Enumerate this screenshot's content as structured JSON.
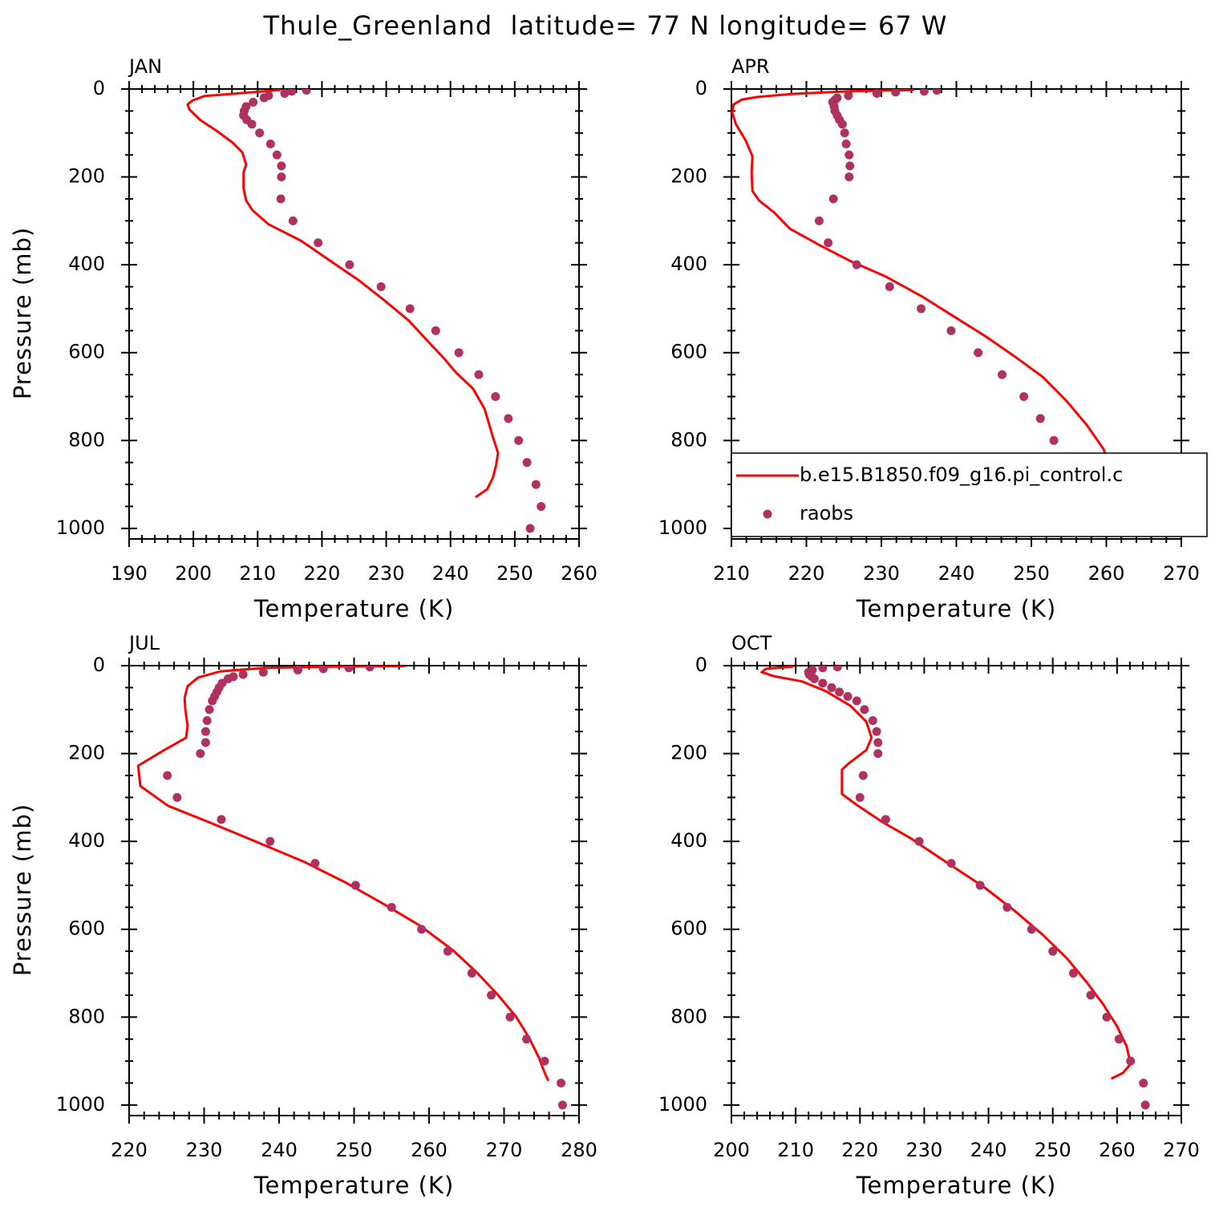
{
  "title": "Thule_Greenland  latitude= 77 N longitude= 67 W",
  "chart_data": [
    {
      "type": "line",
      "title": "JAN",
      "xlabel": "Temperature (K)",
      "ylabel": "Pressure (mb)",
      "xlim": [
        190,
        260
      ],
      "xticks": [
        190,
        200,
        210,
        220,
        230,
        240,
        250,
        260
      ],
      "xminor": 5,
      "ylim": [
        0,
        1024
      ],
      "yticks": [
        0,
        200,
        400,
        600,
        800,
        1000
      ],
      "yminor": 4,
      "y_inverted": true,
      "series": [
        {
          "type": "line",
          "color": "#ff0000",
          "x": [
            243.9,
            245.7,
            246.6,
            247.1,
            247.4,
            246.6,
            245.3,
            243.5,
            240.9,
            238.8,
            236.4,
            233.5,
            229.8,
            225.8,
            221.3,
            216.7,
            211.7,
            209.2,
            208.2,
            207.8,
            207.8,
            208.2,
            207.6,
            206.1,
            203.6,
            201.1,
            199.4,
            199.1,
            199.9,
            201.7,
            206.1,
            211.1,
            213.6
          ],
          "y": [
            929,
            911,
            885,
            856,
            828,
            792,
            728,
            682,
            646,
            610,
            573,
            527,
            482,
            436,
            391,
            345,
            308,
            276,
            254,
            226,
            190,
            172,
            144,
            122,
            95,
            71,
            47,
            35,
            26,
            16,
            11,
            5,
            2
          ]
        },
        {
          "type": "scatter",
          "color": "#b03060",
          "x": [
            252.4,
            254.1,
            253.3,
            251.9,
            250.6,
            249.0,
            247.0,
            244.4,
            241.3,
            237.7,
            233.7,
            229.2,
            224.3,
            219.4,
            215.5,
            213.6,
            213.7,
            213.7,
            213.0,
            212.0,
            210.3,
            209.1,
            208.3,
            207.8,
            207.9,
            208.2,
            209.3,
            211.0,
            211.7,
            214.2,
            215.3,
            217.6
          ],
          "y": [
            1000,
            950,
            900,
            850,
            800,
            750,
            700,
            650,
            600,
            550,
            500,
            450,
            400,
            350,
            300,
            250,
            200,
            175,
            150,
            125,
            100,
            80,
            70,
            60,
            50,
            40,
            30,
            20,
            15,
            10,
            5,
            3
          ]
        }
      ]
    },
    {
      "type": "line",
      "title": "APR",
      "xlabel": "Temperature (K)",
      "ylabel": null,
      "xlim": [
        210,
        270
      ],
      "xticks": [
        210,
        220,
        230,
        240,
        250,
        260,
        270
      ],
      "xminor": 5,
      "ylim": [
        0,
        1024
      ],
      "yticks": [
        0,
        200,
        400,
        600,
        800,
        1000
      ],
      "yminor": 4,
      "y_inverted": true,
      "legend": "lower right",
      "series": [
        {
          "type": "line",
          "name": "b.e15.B1850.f09_g16.pi_control.c",
          "color": "#ff0000",
          "x": [
            259.2,
            260.6,
            261.6,
            260.7,
            259.6,
            257.4,
            254.7,
            251.5,
            247.8,
            244.0,
            239.7,
            235.5,
            230.6,
            225.8,
            221.6,
            217.8,
            215.7,
            213.7,
            212.8,
            212.7,
            212.8,
            211.9,
            210.6,
            210.1,
            210.3,
            211.4,
            213.5,
            218.3,
            225.8,
            234.4
          ],
          "y": [
            947,
            929,
            901,
            865,
            819,
            765,
            710,
            655,
            609,
            564,
            518,
            473,
            427,
            391,
            354,
            318,
            281,
            254,
            232,
            190,
            153,
            117,
            80,
            53,
            35,
            24,
            18,
            11,
            5,
            2
          ]
        },
        {
          "type": "scatter",
          "name": "raobs",
          "color": "#b03060",
          "x": [
            257.1,
            257.1,
            255.8,
            254.4,
            253.0,
            251.2,
            249.0,
            246.1,
            242.9,
            239.3,
            235.3,
            231.1,
            226.7,
            222.9,
            221.7,
            223.6,
            225.7,
            225.8,
            225.7,
            225.3,
            225.1,
            224.8,
            224.4,
            224.1,
            223.8,
            223.7,
            223.5,
            223.8,
            224.1,
            225.6,
            229.4,
            231.9,
            235.7,
            237.4
          ],
          "y": [
            1000,
            950,
            900,
            850,
            800,
            750,
            700,
            650,
            600,
            550,
            500,
            450,
            400,
            350,
            300,
            250,
            200,
            175,
            150,
            125,
            100,
            80,
            70,
            60,
            50,
            40,
            30,
            25,
            20,
            15,
            10,
            7,
            5,
            3
          ]
        }
      ]
    },
    {
      "type": "line",
      "title": "JUL",
      "xlabel": "Temperature (K)",
      "ylabel": "Pressure (mb)",
      "xlim": [
        220,
        280
      ],
      "xticks": [
        220,
        230,
        240,
        250,
        260,
        270,
        280
      ],
      "xminor": 5,
      "ylim": [
        0,
        1024
      ],
      "yticks": [
        0,
        200,
        400,
        600,
        800,
        1000
      ],
      "yminor": 4,
      "y_inverted": true,
      "series": [
        {
          "type": "line",
          "color": "#ff0000",
          "x": [
            275.9,
            275.3,
            274.7,
            273.4,
            271.6,
            269.1,
            266.4,
            263.2,
            258.9,
            254.1,
            248.8,
            243.4,
            237.0,
            230.6,
            225.2,
            221.5,
            221.2,
            224.7,
            227.6,
            227.8,
            227.5,
            227.4,
            227.8,
            229.2,
            232.2,
            238.1,
            247.7,
            256.8
          ],
          "y": [
            945,
            922,
            894,
            849,
            799,
            748,
            699,
            648,
            593,
            544,
            493,
            447,
            401,
            356,
            319,
            274,
            228,
            192,
            164,
            137,
            100,
            73,
            47,
            27,
            13,
            5,
            2,
            1
          ]
        },
        {
          "type": "scatter",
          "color": "#b03060",
          "x": [
            277.8,
            277.6,
            275.4,
            273.0,
            270.8,
            268.3,
            265.7,
            262.5,
            259.0,
            255.0,
            250.2,
            244.8,
            238.8,
            232.3,
            226.4,
            225.1,
            229.5,
            230.2,
            230.2,
            230.4,
            230.7,
            231.1,
            231.4,
            231.7,
            232.0,
            232.4,
            233.2,
            233.9,
            235.2,
            237.9,
            242.5,
            245.9,
            249.3,
            252.1
          ],
          "y": [
            1000,
            950,
            900,
            850,
            800,
            750,
            700,
            650,
            600,
            550,
            500,
            450,
            400,
            350,
            300,
            250,
            200,
            175,
            150,
            125,
            100,
            80,
            70,
            60,
            50,
            40,
            30,
            25,
            20,
            15,
            10,
            7,
            5,
            3
          ]
        }
      ]
    },
    {
      "type": "line",
      "title": "OCT",
      "xlabel": "Temperature (K)",
      "ylabel": null,
      "xlim": [
        200,
        270
      ],
      "xticks": [
        200,
        210,
        220,
        230,
        240,
        250,
        260,
        270
      ],
      "xminor": 5,
      "ylim": [
        0,
        1024
      ],
      "yticks": [
        0,
        200,
        400,
        600,
        800,
        1000
      ],
      "yminor": 4,
      "y_inverted": true,
      "series": [
        {
          "type": "line",
          "color": "#ff0000",
          "x": [
            259.1,
            260.9,
            262.1,
            261.5,
            260.0,
            257.8,
            255.3,
            252.2,
            248.4,
            244.0,
            239.1,
            233.4,
            227.8,
            223.5,
            219.7,
            217.2,
            217.2,
            218.2,
            221.0,
            221.8,
            221.0,
            218.5,
            214.7,
            211.0,
            206.6,
            204.7,
            205.4,
            209.7
          ],
          "y": [
            940,
            927,
            907,
            867,
            821,
            770,
            721,
            666,
            612,
            557,
            502,
            447,
            392,
            356,
            319,
            292,
            237,
            223,
            192,
            164,
            128,
            91,
            58,
            36,
            24,
            15,
            7,
            2
          ]
        },
        {
          "type": "scatter",
          "color": "#b03060",
          "x": [
            264.4,
            264.1,
            262.1,
            260.3,
            258.4,
            255.9,
            253.2,
            250.0,
            246.7,
            242.9,
            238.7,
            234.2,
            229.2,
            224.0,
            220.0,
            220.5,
            222.8,
            222.8,
            222.6,
            222.0,
            220.7,
            219.5,
            218.1,
            216.8,
            215.6,
            214.2,
            212.9,
            212.5,
            212.1,
            212.0,
            212.6,
            214.2,
            216.5
          ],
          "y": [
            1000,
            950,
            900,
            850,
            800,
            750,
            700,
            650,
            600,
            550,
            500,
            450,
            400,
            350,
            300,
            250,
            200,
            175,
            150,
            125,
            100,
            80,
            70,
            60,
            50,
            40,
            30,
            25,
            20,
            15,
            10,
            5,
            3
          ]
        }
      ]
    }
  ]
}
